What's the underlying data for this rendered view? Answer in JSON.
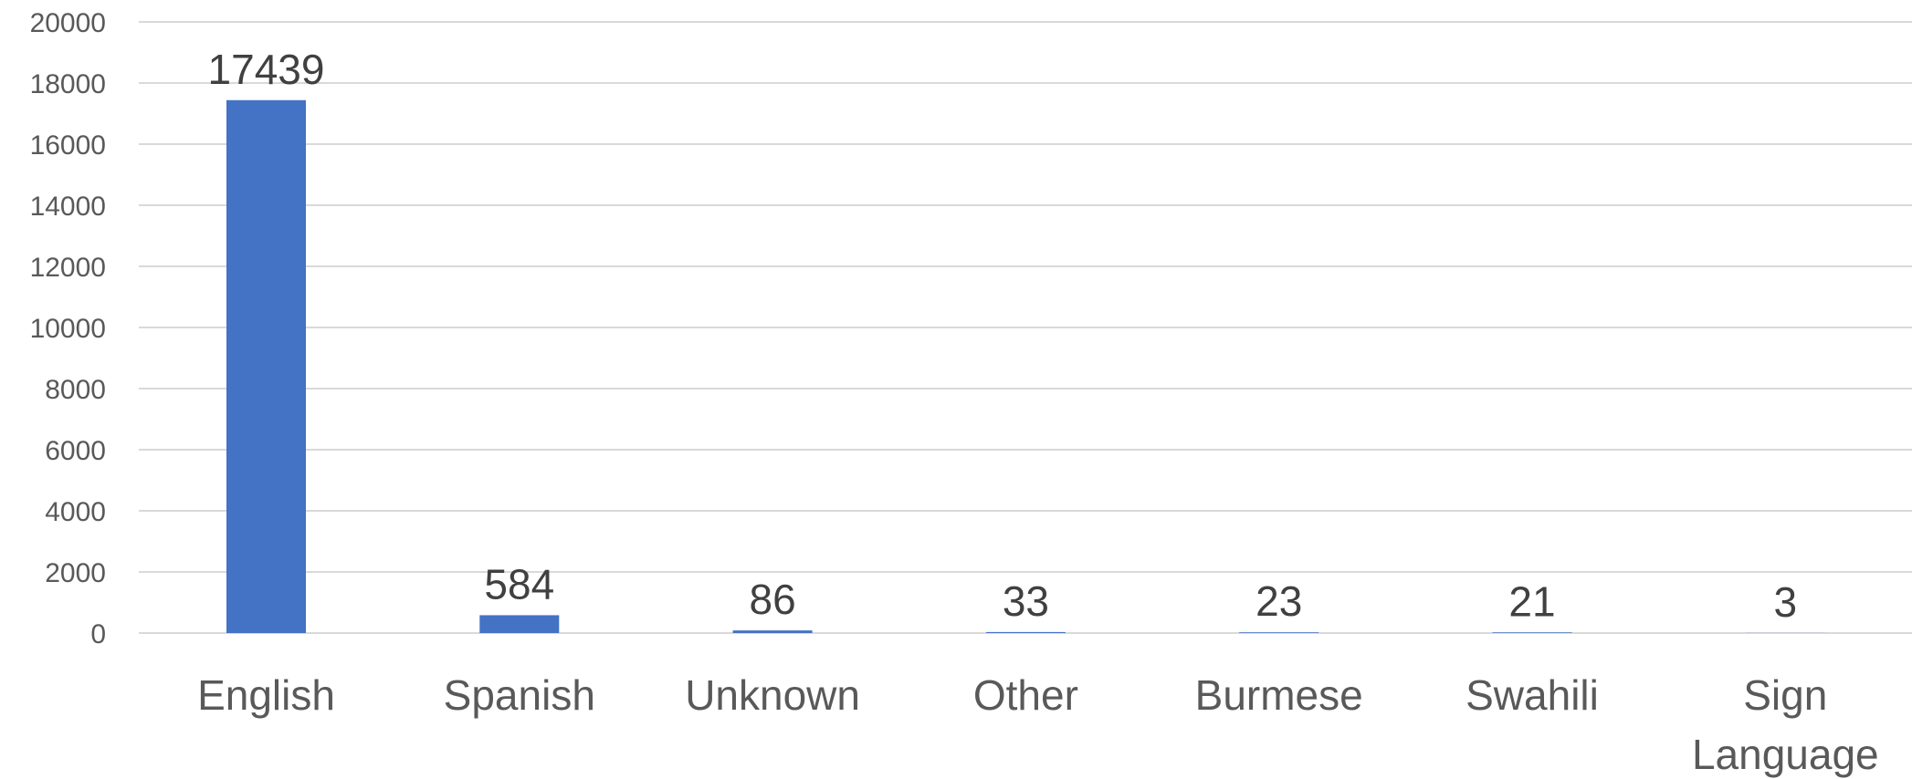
{
  "chart_data": {
    "type": "bar",
    "title": "",
    "xlabel": "",
    "ylabel": "",
    "categories": [
      "English",
      "Spanish",
      "Unknown",
      "Other",
      "Burmese",
      "Swahili",
      "Sign Language"
    ],
    "values": [
      17439,
      584,
      86,
      33,
      23,
      21,
      3
    ],
    "data_labels": [
      "17439",
      "584",
      "86",
      "33",
      "23",
      "21",
      "3"
    ],
    "ylim": [
      0,
      20000
    ],
    "yticks": [
      0,
      2000,
      4000,
      6000,
      8000,
      10000,
      12000,
      14000,
      16000,
      18000,
      20000
    ],
    "grid": true,
    "legend": "none",
    "bar_color": "#4472c4"
  }
}
